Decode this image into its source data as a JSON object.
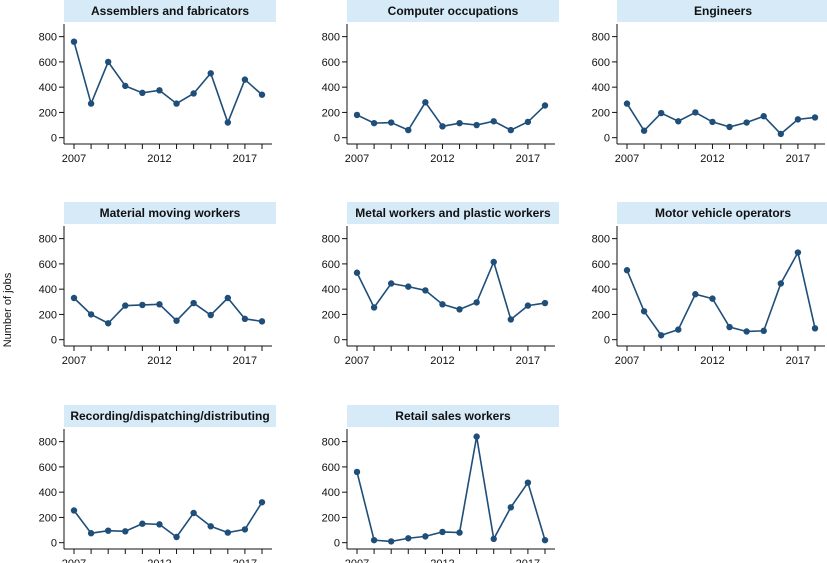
{
  "chart_data": {
    "type": "line",
    "ylabel": "Number of jobs",
    "ylim": [
      -50,
      900
    ],
    "yticks": [
      0,
      200,
      400,
      600,
      800
    ],
    "x": [
      2007,
      2008,
      2009,
      2010,
      2011,
      2012,
      2013,
      2014,
      2015,
      2016,
      2017,
      2018
    ],
    "xticks": [
      2007,
      2012,
      2017
    ],
    "xtick_labels": [
      "2007",
      "2012",
      "2017"
    ],
    "ytick_labels": [
      "0",
      "200",
      "400",
      "600",
      "800"
    ],
    "colors": {
      "line": "#1f4e79",
      "title_bg": "#d6eaf8",
      "axis": "#111111"
    },
    "panels": [
      {
        "title": "Assemblers and fabricators",
        "values": [
          760,
          270,
          600,
          410,
          355,
          375,
          270,
          350,
          510,
          120,
          460,
          340
        ]
      },
      {
        "title": "Computer occupations",
        "values": [
          180,
          115,
          120,
          60,
          280,
          90,
          115,
          100,
          130,
          60,
          125,
          255
        ]
      },
      {
        "title": "Engineers",
        "values": [
          270,
          55,
          195,
          130,
          200,
          125,
          85,
          120,
          170,
          30,
          145,
          160
        ]
      },
      {
        "title": "Material moving workers",
        "values": [
          330,
          200,
          130,
          270,
          275,
          280,
          150,
          290,
          195,
          330,
          165,
          145
        ]
      },
      {
        "title": "Metal workers and plastic workers",
        "values": [
          530,
          255,
          445,
          420,
          390,
          280,
          240,
          295,
          615,
          160,
          270,
          290
        ]
      },
      {
        "title": "Motor vehicle operators",
        "values": [
          550,
          225,
          35,
          80,
          360,
          325,
          100,
          65,
          70,
          445,
          690,
          90
        ]
      },
      {
        "title": "Recording/dispatching/distributing",
        "values": [
          255,
          75,
          95,
          90,
          150,
          145,
          45,
          235,
          130,
          80,
          105,
          320
        ]
      },
      {
        "title": "Retail sales workers",
        "values": [
          560,
          20,
          10,
          35,
          50,
          85,
          80,
          840,
          30,
          280,
          475,
          20
        ]
      }
    ]
  }
}
